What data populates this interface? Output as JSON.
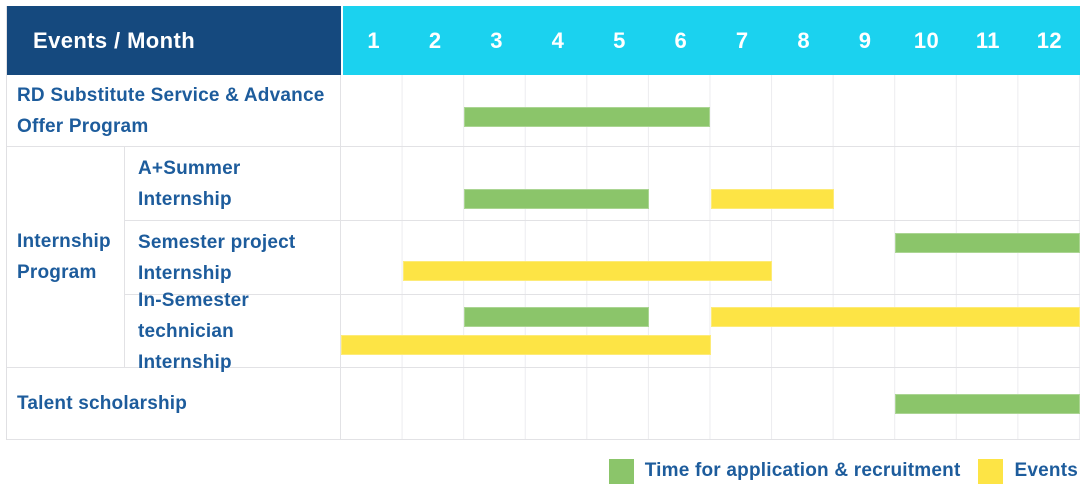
{
  "colors": {
    "header_bg": "#15497e",
    "months_bg": "#1bd2ef",
    "header_text": "#ffffff",
    "label_text": "#1d5c9c",
    "row_border": "#e2e2e5",
    "month_gridline": "#ececef",
    "recruitment": "#8bc56a",
    "events": "#fde445"
  },
  "header": {
    "title": "Events / Month",
    "months": [
      "1",
      "2",
      "3",
      "4",
      "5",
      "6",
      "7",
      "8",
      "9",
      "10",
      "11",
      "12"
    ]
  },
  "chart_data": {
    "type": "gantt",
    "x_unit": "month",
    "x_range": [
      1,
      12
    ],
    "bar_types": {
      "recruitment": "Time for application & recruitment",
      "events": "Events"
    },
    "rows": [
      {
        "label": "RD Substitute Service & Advance Offer Program",
        "group": "",
        "lines": [
          [
            {
              "type": "recruitment",
              "start": 3,
              "end": 6
            }
          ]
        ]
      },
      {
        "label": "A+Summer Internship",
        "group": "Internship Program",
        "lines": [
          [
            {
              "type": "recruitment",
              "start": 3,
              "end": 5
            },
            {
              "type": "events",
              "start": 7,
              "end": 8
            }
          ]
        ]
      },
      {
        "label": "Semester project Internship",
        "group": "Internship Program",
        "lines": [
          [
            {
              "type": "recruitment",
              "start": 10,
              "end": 12
            }
          ],
          [
            {
              "type": "events",
              "start": 2,
              "end": 7
            }
          ]
        ]
      },
      {
        "label": "In-Semester technician Internship",
        "group": "Internship Program",
        "lines": [
          [
            {
              "type": "recruitment",
              "start": 3,
              "end": 5
            },
            {
              "type": "events",
              "start": 7,
              "end": 12
            }
          ],
          [
            {
              "type": "events",
              "start": 1,
              "end": 6
            }
          ]
        ]
      },
      {
        "label": "Talent scholarship",
        "group": "",
        "lines": [
          [
            {
              "type": "recruitment",
              "start": 10,
              "end": 12
            }
          ]
        ]
      }
    ],
    "legend": [
      {
        "key": "recruitment",
        "label": "Time for application & recruitment",
        "color": "#8bc56a"
      },
      {
        "key": "events",
        "label": "Events",
        "color": "#fde445"
      }
    ],
    "legend_position": "bottom-right",
    "grid": true
  }
}
